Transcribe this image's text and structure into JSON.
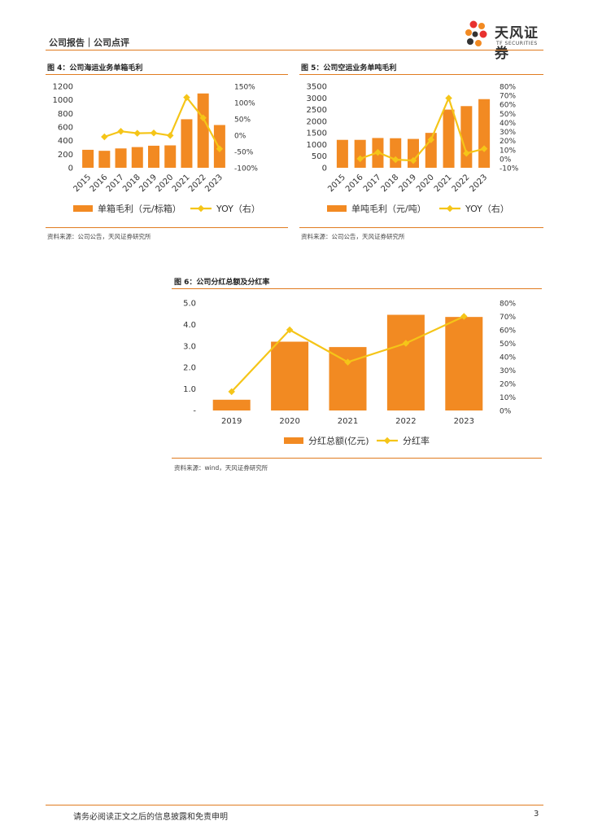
{
  "header": {
    "title": "公司报告｜公司点评",
    "logo_cn": "天风证券",
    "logo_en": "TF SECURITIES"
  },
  "footer": {
    "disclaimer": "请务必阅读正文之后的信息披露和免责申明",
    "page": "3"
  },
  "colors": {
    "accent": "#e07b20",
    "bar": "#f28a22",
    "line": "#f5c518"
  },
  "figures": [
    {
      "title": "图 4：公司海运业务单箱毛利",
      "source": "资料来源：公司公告，天风证券研究所"
    },
    {
      "title": "图 5：公司空运业务单吨毛利",
      "source": "资料来源：公司公告，天风证券研究所"
    },
    {
      "title": "图 6：公司分红总额及分红率",
      "source": "资料来源：wind，天风证券研究所"
    }
  ],
  "chart_data": [
    {
      "type": "bar",
      "categories": [
        "2015",
        "2016",
        "2017",
        "2018",
        "2019",
        "2020",
        "2021",
        "2022",
        "2023"
      ],
      "series": [
        {
          "name": "单箱毛利（元/标箱）",
          "type": "bar",
          "axis": "left",
          "values": [
            265,
            250,
            285,
            305,
            325,
            330,
            715,
            1095,
            630
          ]
        },
        {
          "name": "YOY（右）",
          "type": "line",
          "axis": "right",
          "values": [
            null,
            -5,
            12,
            6,
            7,
            -1,
            116,
            53,
            -42
          ]
        }
      ],
      "y_left": {
        "min": 0,
        "max": 1200,
        "ticks": [
          "0",
          "200",
          "400",
          "600",
          "800",
          "1000",
          "1200"
        ]
      },
      "y_right": {
        "min": -100,
        "max": 150,
        "ticks": [
          "-100%",
          "-50%",
          "0%",
          "50%",
          "100%",
          "150%"
        ]
      },
      "legend": "bottom"
    },
    {
      "type": "bar",
      "categories": [
        "2015",
        "2016",
        "2017",
        "2018",
        "2019",
        "2020",
        "2021",
        "2022",
        "2023"
      ],
      "series": [
        {
          "name": "单吨毛利（元/吨）",
          "type": "bar",
          "axis": "left",
          "values": [
            1200,
            1200,
            1280,
            1270,
            1240,
            1500,
            2500,
            2650,
            2950
          ]
        },
        {
          "name": "YOY（右）",
          "type": "line",
          "axis": "right",
          "values": [
            null,
            0,
            7,
            -1,
            -2,
            21,
            67,
            6,
            11
          ]
        }
      ],
      "y_left": {
        "min": 0,
        "max": 3500,
        "ticks": [
          "0",
          "500",
          "1000",
          "1500",
          "2000",
          "2500",
          "3000",
          "3500"
        ]
      },
      "y_right": {
        "min": -10,
        "max": 80,
        "ticks": [
          "-10%",
          "0%",
          "10%",
          "20%",
          "30%",
          "40%",
          "50%",
          "60%",
          "70%",
          "80%"
        ]
      },
      "legend": "bottom"
    },
    {
      "type": "bar",
      "categories": [
        "2019",
        "2020",
        "2021",
        "2022",
        "2023"
      ],
      "series": [
        {
          "name": "分红总额(亿元)",
          "type": "bar",
          "axis": "left",
          "values": [
            0.5,
            3.2,
            2.95,
            4.45,
            4.35
          ]
        },
        {
          "name": "分红率",
          "type": "line",
          "axis": "right",
          "values": [
            14,
            60,
            36,
            50,
            70
          ]
        }
      ],
      "y_left": {
        "min": 0,
        "max": 5,
        "ticks": [
          "-",
          "1.0",
          "2.0",
          "3.0",
          "4.0",
          "5.0"
        ]
      },
      "y_right": {
        "min": 0,
        "max": 80,
        "ticks": [
          "0%",
          "10%",
          "20%",
          "30%",
          "40%",
          "50%",
          "60%",
          "70%",
          "80%"
        ]
      },
      "legend": "bottom"
    }
  ]
}
